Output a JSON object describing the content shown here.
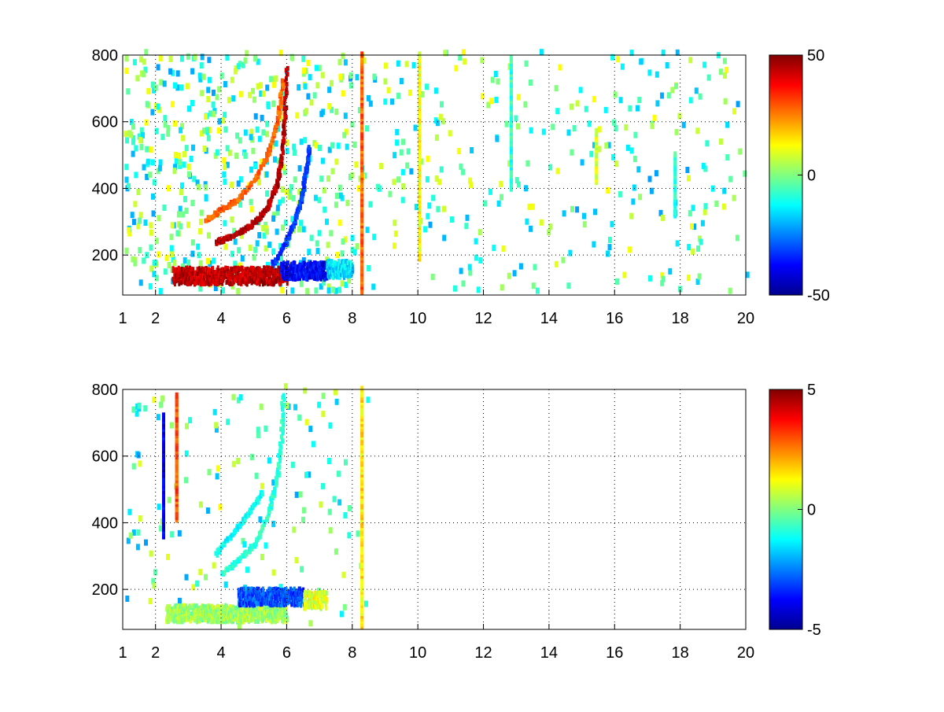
{
  "chart_data": [
    {
      "type": "heatmap",
      "title": "",
      "xlabel": "",
      "ylabel": "",
      "xlim": [
        1,
        20
      ],
      "ylim": [
        80,
        800
      ],
      "x_ticks": [
        1,
        2,
        4,
        6,
        8,
        10,
        12,
        14,
        16,
        18,
        20
      ],
      "y_ticks": [
        200,
        400,
        600,
        800
      ],
      "grid": true,
      "colormap": "jet",
      "colorbar": {
        "min": -50,
        "max": 50,
        "ticks": [
          50,
          0,
          -50
        ]
      },
      "features": [
        {
          "kind": "curve",
          "value": 45,
          "points": [
            [
              3.8,
              230
            ],
            [
              4.2,
              245
            ],
            [
              4.7,
              270
            ],
            [
              5.1,
              300
            ],
            [
              5.4,
              340
            ],
            [
              5.65,
              400
            ],
            [
              5.8,
              480
            ],
            [
              5.9,
              600
            ],
            [
              5.95,
              760
            ]
          ]
        },
        {
          "kind": "curve",
          "value": 28,
          "points": [
            [
              3.5,
              300
            ],
            [
              4.0,
              330
            ],
            [
              4.5,
              360
            ],
            [
              5.0,
              420
            ],
            [
              5.4,
              500
            ],
            [
              5.7,
              600
            ],
            [
              5.85,
              720
            ]
          ]
        },
        {
          "kind": "curve",
          "value": -32,
          "points": [
            [
              5.5,
              160
            ],
            [
              5.9,
              220
            ],
            [
              6.2,
              290
            ],
            [
              6.4,
              360
            ],
            [
              6.55,
              440
            ],
            [
              6.65,
              520
            ]
          ]
        },
        {
          "kind": "band",
          "value": 44,
          "y": 130,
          "x0": 2.5,
          "x1": 6.0
        },
        {
          "kind": "band",
          "value": -38,
          "y": 145,
          "x0": 5.8,
          "x1": 7.3
        },
        {
          "kind": "band",
          "value": -15,
          "y": 150,
          "x0": 7.2,
          "x1": 8.0
        },
        {
          "kind": "vline",
          "value": 28,
          "x": 8.25,
          "y0": 80,
          "y1": 800
        },
        {
          "kind": "vline",
          "value": -8,
          "x": 12.8,
          "y0": 390,
          "y1": 790
        },
        {
          "kind": "vline",
          "value": 8,
          "x": 15.4,
          "y0": 410,
          "y1": 570
        },
        {
          "kind": "vline",
          "value": -8,
          "x": 17.8,
          "y0": 310,
          "y1": 500
        },
        {
          "kind": "vline",
          "value": 12,
          "x": 10.0,
          "y0": 180,
          "y1": 800
        }
      ]
    },
    {
      "type": "heatmap",
      "title": "",
      "xlabel": "",
      "ylabel": "",
      "xlim": [
        1,
        20
      ],
      "ylim": [
        80,
        800
      ],
      "x_ticks": [
        1,
        2,
        4,
        6,
        8,
        10,
        12,
        14,
        16,
        18,
        20
      ],
      "y_ticks": [
        200,
        400,
        600,
        800
      ],
      "grid": true,
      "colormap": "jet",
      "colorbar": {
        "min": -5,
        "max": 5,
        "ticks": [
          5,
          0,
          -5
        ]
      },
      "features": [
        {
          "kind": "curve",
          "value": -0.8,
          "points": [
            [
              4.0,
              240
            ],
            [
              4.5,
              280
            ],
            [
              5.0,
              330
            ],
            [
              5.4,
              420
            ],
            [
              5.65,
              520
            ],
            [
              5.8,
              640
            ],
            [
              5.85,
              780
            ]
          ]
        },
        {
          "kind": "curve",
          "value": -1.2,
          "points": [
            [
              3.8,
              300
            ],
            [
              4.3,
              360
            ],
            [
              4.8,
              420
            ],
            [
              5.2,
              480
            ]
          ]
        },
        {
          "kind": "band",
          "value": 0.3,
          "y": 120,
          "x0": 2.3,
          "x1": 6.0
        },
        {
          "kind": "band",
          "value": -3.0,
          "y": 170,
          "x0": 4.5,
          "x1": 6.5
        },
        {
          "kind": "band",
          "value": 1.0,
          "y": 160,
          "x0": 6.5,
          "x1": 7.2
        },
        {
          "kind": "vline",
          "value": 1.5,
          "x": 8.25,
          "y0": 80,
          "y1": 800
        },
        {
          "kind": "vline",
          "value": -4.0,
          "x": 2.2,
          "y0": 350,
          "y1": 720
        },
        {
          "kind": "vline",
          "value": 3.0,
          "x": 2.6,
          "y0": 400,
          "y1": 780
        }
      ]
    }
  ]
}
